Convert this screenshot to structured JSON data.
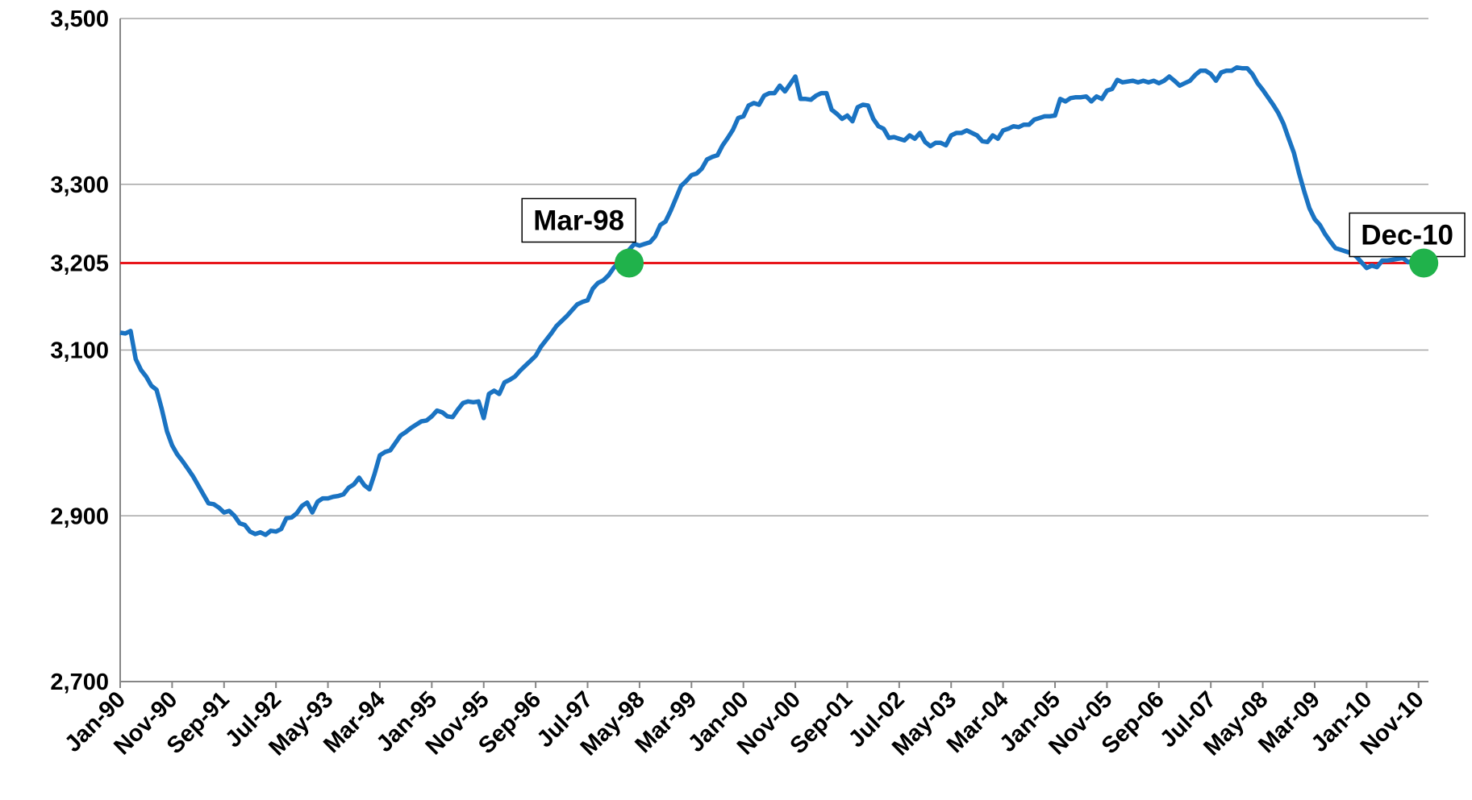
{
  "chart_data": {
    "type": "line",
    "categories": [
      "Jan-90",
      null,
      null,
      null,
      null,
      null,
      null,
      null,
      null,
      null,
      "Nov-90",
      null,
      null,
      null,
      null,
      null,
      null,
      null,
      null,
      null,
      "Sep-91",
      null,
      null,
      null,
      null,
      null,
      null,
      null,
      null,
      null,
      "Jul-92",
      null,
      null,
      null,
      null,
      null,
      null,
      null,
      null,
      null,
      "May-93",
      null,
      null,
      null,
      null,
      null,
      null,
      null,
      null,
      null,
      "Mar-94",
      null,
      null,
      null,
      null,
      null,
      null,
      null,
      null,
      null,
      "Jan-95",
      null,
      null,
      null,
      null,
      null,
      null,
      null,
      null,
      null,
      "Nov-95",
      null,
      null,
      null,
      null,
      null,
      null,
      null,
      null,
      null,
      "Sep-96",
      null,
      null,
      null,
      null,
      null,
      null,
      null,
      null,
      null,
      "Jul-97",
      null,
      null,
      null,
      null,
      null,
      null,
      null,
      null,
      null,
      "May-98",
      null,
      null,
      null,
      null,
      null,
      null,
      null,
      null,
      null,
      "Mar-99",
      null,
      null,
      null,
      null,
      null,
      null,
      null,
      null,
      null,
      "Jan-00",
      null,
      null,
      null,
      null,
      null,
      null,
      null,
      null,
      null,
      "Nov-00",
      null,
      null,
      null,
      null,
      null,
      null,
      null,
      null,
      null,
      "Sep-01",
      null,
      null,
      null,
      null,
      null,
      null,
      null,
      null,
      null,
      "Jul-02",
      null,
      null,
      null,
      null,
      null,
      null,
      null,
      null,
      null,
      "May-03",
      null,
      null,
      null,
      null,
      null,
      null,
      null,
      null,
      null,
      "Mar-04",
      null,
      null,
      null,
      null,
      null,
      null,
      null,
      null,
      null,
      "Jan-05",
      null,
      null,
      null,
      null,
      null,
      null,
      null,
      null,
      null,
      "Nov-05",
      null,
      null,
      null,
      null,
      null,
      null,
      null,
      null,
      null,
      "Sep-06",
      null,
      null,
      null,
      null,
      null,
      null,
      null,
      null,
      null,
      "Jul-07",
      null,
      null,
      null,
      null,
      null,
      null,
      null,
      null,
      null,
      "May-08",
      null,
      null,
      null,
      null,
      null,
      null,
      null,
      null,
      null,
      "Mar-09",
      null,
      null,
      null,
      null,
      null,
      null,
      null,
      null,
      null,
      "Jan-10",
      null,
      null,
      null,
      null,
      null,
      null,
      null,
      null,
      null,
      "Nov-10",
      null
    ],
    "series": [
      {
        "color": "#1a73c2",
        "values": [
          3121,
          3120,
          3123,
          3089,
          3076,
          3068,
          3057,
          3052,
          3029,
          3002,
          2985,
          2974,
          2966,
          2957,
          2948,
          2937,
          2926,
          2915,
          2914,
          2910,
          2904,
          2906,
          2900,
          2891,
          2889,
          2881,
          2878,
          2880,
          2877,
          2882,
          2881,
          2884,
          2897,
          2898,
          2903,
          2912,
          2916,
          2904,
          2917,
          2921,
          2921,
          2923,
          2924,
          2926,
          2934,
          2938,
          2946,
          2937,
          2932,
          2951,
          2973,
          2977,
          2979,
          2988,
          2997,
          3001,
          3006,
          3010,
          3014,
          3015,
          3020,
          3027,
          3025,
          3020,
          3019,
          3028,
          3036,
          3038,
          3037,
          3038,
          3018,
          3047,
          3051,
          3047,
          3061,
          3064,
          3068,
          3075,
          3081,
          3087,
          3093,
          3104,
          3112,
          3120,
          3129,
          3135,
          3141,
          3148,
          3155,
          3158,
          3160,
          3174,
          3181,
          3184,
          3190,
          3199,
          3206,
          3210,
          3221,
          3228,
          3226,
          3228,
          3230,
          3237,
          3251,
          3255,
          3268,
          3283,
          3298,
          3304,
          3311,
          3313,
          3319,
          3330,
          3333,
          3335,
          3347,
          3356,
          3366,
          3380,
          3382,
          3395,
          3398,
          3396,
          3407,
          3410,
          3410,
          3419,
          3412,
          3421,
          3430,
          3403,
          3403,
          3402,
          3407,
          3410,
          3410,
          3390,
          3385,
          3379,
          3383,
          3376,
          3393,
          3396,
          3395,
          3379,
          3370,
          3367,
          3356,
          3357,
          3355,
          3353,
          3359,
          3355,
          3362,
          3351,
          3346,
          3350,
          3350,
          3347,
          3359,
          3362,
          3362,
          3365,
          3362,
          3359,
          3352,
          3351,
          3359,
          3355,
          3365,
          3367,
          3370,
          3369,
          3372,
          3372,
          3378,
          3380,
          3382,
          3382,
          3383,
          3403,
          3400,
          3404,
          3405,
          3405,
          3406,
          3400,
          3406,
          3403,
          3413,
          3415,
          3426,
          3423,
          3424,
          3425,
          3423,
          3425,
          3423,
          3425,
          3422,
          3425,
          3430,
          3425,
          3419,
          3422,
          3425,
          3432,
          3437,
          3437,
          3433,
          3425,
          3435,
          3437,
          3437,
          3441,
          3440,
          3440,
          3433,
          3422,
          3414,
          3405,
          3396,
          3386,
          3373,
          3355,
          3338,
          3313,
          3291,
          3271,
          3258,
          3251,
          3240,
          3231,
          3223,
          3221,
          3219,
          3217,
          3213,
          3206,
          3199,
          3202,
          3200,
          3208,
          3208,
          3209,
          3210,
          3211,
          3206,
          3208,
          3217,
          3204
        ]
      }
    ],
    "ylim": [
      2700,
      3500
    ],
    "yticks": [
      {
        "value": 2700,
        "label": "2,700"
      },
      {
        "value": 2900,
        "label": "2,900"
      },
      {
        "value": 3100,
        "label": "3,100"
      },
      {
        "value": 3205,
        "label": "3,205"
      },
      {
        "value": 3300,
        "label": "3,300"
      },
      {
        "value": 3500,
        "label": "3,500"
      }
    ],
    "grid": true,
    "reference_line": {
      "value": 3205,
      "color": "#e8161b"
    },
    "annotations": [
      {
        "text": "Mar-98",
        "x": 98,
        "value": 3205,
        "color": "#20b24b"
      },
      {
        "text": "Dec-10",
        "x": 251,
        "value": 3205,
        "color": "#20b24b"
      }
    ]
  }
}
